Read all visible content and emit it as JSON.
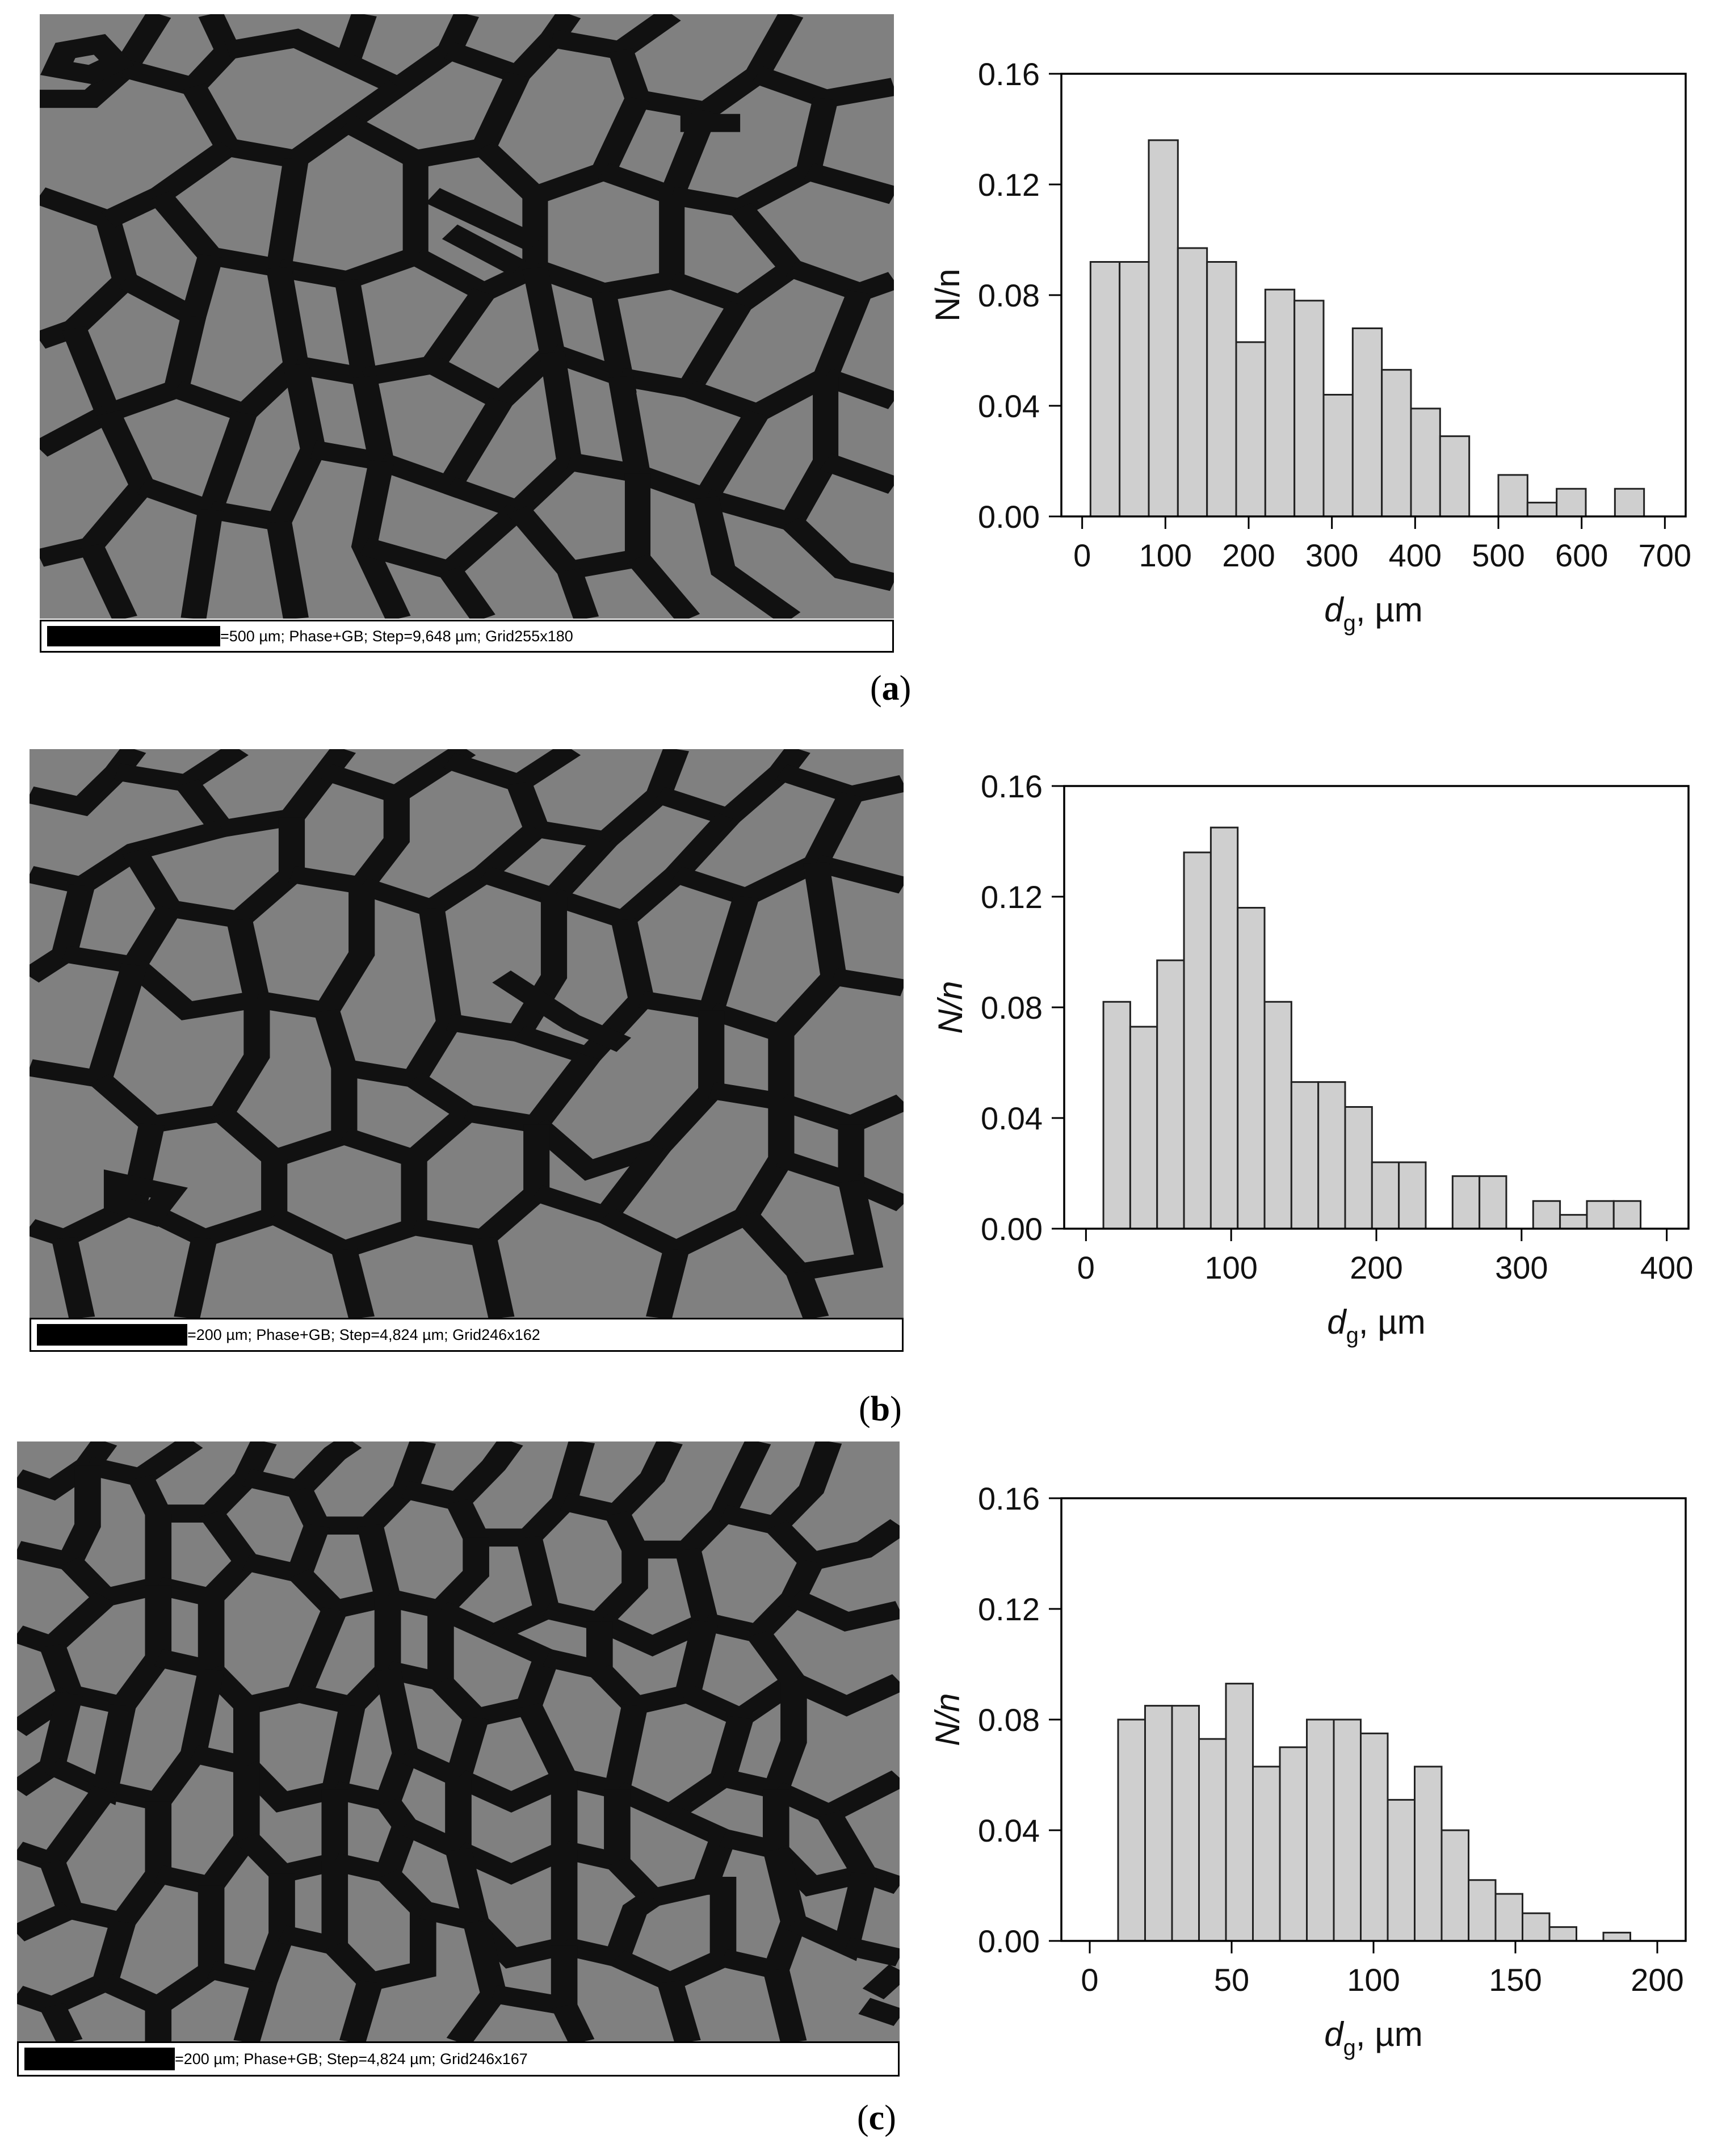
{
  "panels": [
    {
      "id": "a",
      "label": "a",
      "scale_text": "=500 µm; Phase+GB; Step=9,648 µm; Grid255x180",
      "chart_data": {
        "type": "bar",
        "xlabel_main": "d",
        "xlabel_sub": "g",
        "xlabel_unit": ", µm",
        "ylabel": "N/n",
        "ylabel_italic": false,
        "xlim": [
          -25,
          725
        ],
        "ylim": [
          0,
          0.16
        ],
        "xticks": [
          0,
          100,
          200,
          300,
          400,
          500,
          600,
          700
        ],
        "yticks": [
          "0.00",
          "0.04",
          "0.08",
          "0.12",
          "0.16"
        ],
        "bin_width": 35,
        "bin_starts": [
          10,
          45,
          80,
          115,
          150,
          185,
          220,
          255,
          290,
          325,
          360,
          395,
          430,
          465,
          500,
          535,
          570,
          605,
          640
        ],
        "values": [
          0.092,
          0.092,
          0.136,
          0.097,
          0.092,
          0.063,
          0.082,
          0.078,
          0.044,
          0.068,
          0.053,
          0.039,
          0.029,
          0.0,
          0.015,
          0.005,
          0.01,
          0.0,
          0.01
        ]
      }
    },
    {
      "id": "b",
      "label": "b",
      "scale_text": "=200 µm; Phase+GB; Step=4,824 µm; Grid246x162",
      "chart_data": {
        "type": "bar",
        "xlabel_main": "d",
        "xlabel_sub": "g",
        "xlabel_unit": ", µm",
        "ylabel": "N/n",
        "ylabel_italic": true,
        "xlim": [
          -15,
          415
        ],
        "ylim": [
          0,
          0.16
        ],
        "xticks": [
          0,
          100,
          200,
          300,
          400
        ],
        "yticks": [
          "0.00",
          "0.04",
          "0.08",
          "0.12",
          "0.16"
        ],
        "bin_width": 18.5,
        "bin_starts": [
          12,
          30.5,
          49,
          67.5,
          86,
          104.5,
          123,
          141.5,
          160,
          178.5,
          197,
          215.5,
          234,
          252.5,
          271,
          289.5,
          308,
          326.5,
          345,
          363.5
        ],
        "values": [
          0.082,
          0.073,
          0.097,
          0.136,
          0.145,
          0.116,
          0.082,
          0.053,
          0.053,
          0.044,
          0.024,
          0.024,
          0.0,
          0.019,
          0.019,
          0.0,
          0.01,
          0.005,
          0.01,
          0.01
        ]
      }
    },
    {
      "id": "c",
      "label": "c",
      "scale_text": "=200 µm; Phase+GB; Step=4,824 µm; Grid246x167",
      "chart_data": {
        "type": "bar",
        "xlabel_main": "d",
        "xlabel_sub": "g",
        "xlabel_unit": ", µm",
        "ylabel": "N/n",
        "ylabel_italic": true,
        "xlim": [
          -10,
          210
        ],
        "ylim": [
          0,
          0.16
        ],
        "xticks": [
          0,
          50,
          100,
          150,
          200
        ],
        "yticks": [
          "0.00",
          "0.04",
          "0.08",
          "0.12",
          "0.16"
        ],
        "bin_width": 9.5,
        "bin_starts": [
          10,
          19.5,
          29,
          38.5,
          48,
          57.5,
          67,
          76.5,
          86,
          95.5,
          105,
          114.5,
          124,
          133.5,
          143,
          152.5,
          162,
          171.5,
          181
        ],
        "values": [
          0.08,
          0.085,
          0.085,
          0.073,
          0.093,
          0.063,
          0.07,
          0.08,
          0.08,
          0.075,
          0.051,
          0.063,
          0.04,
          0.022,
          0.017,
          0.01,
          0.005,
          0.0,
          0.003
        ]
      }
    }
  ],
  "colors": {
    "micro_bg": "#808080",
    "grain_boundary": "#111111",
    "bar_fill": "#cfcfcf",
    "bar_stroke": "#222222"
  }
}
